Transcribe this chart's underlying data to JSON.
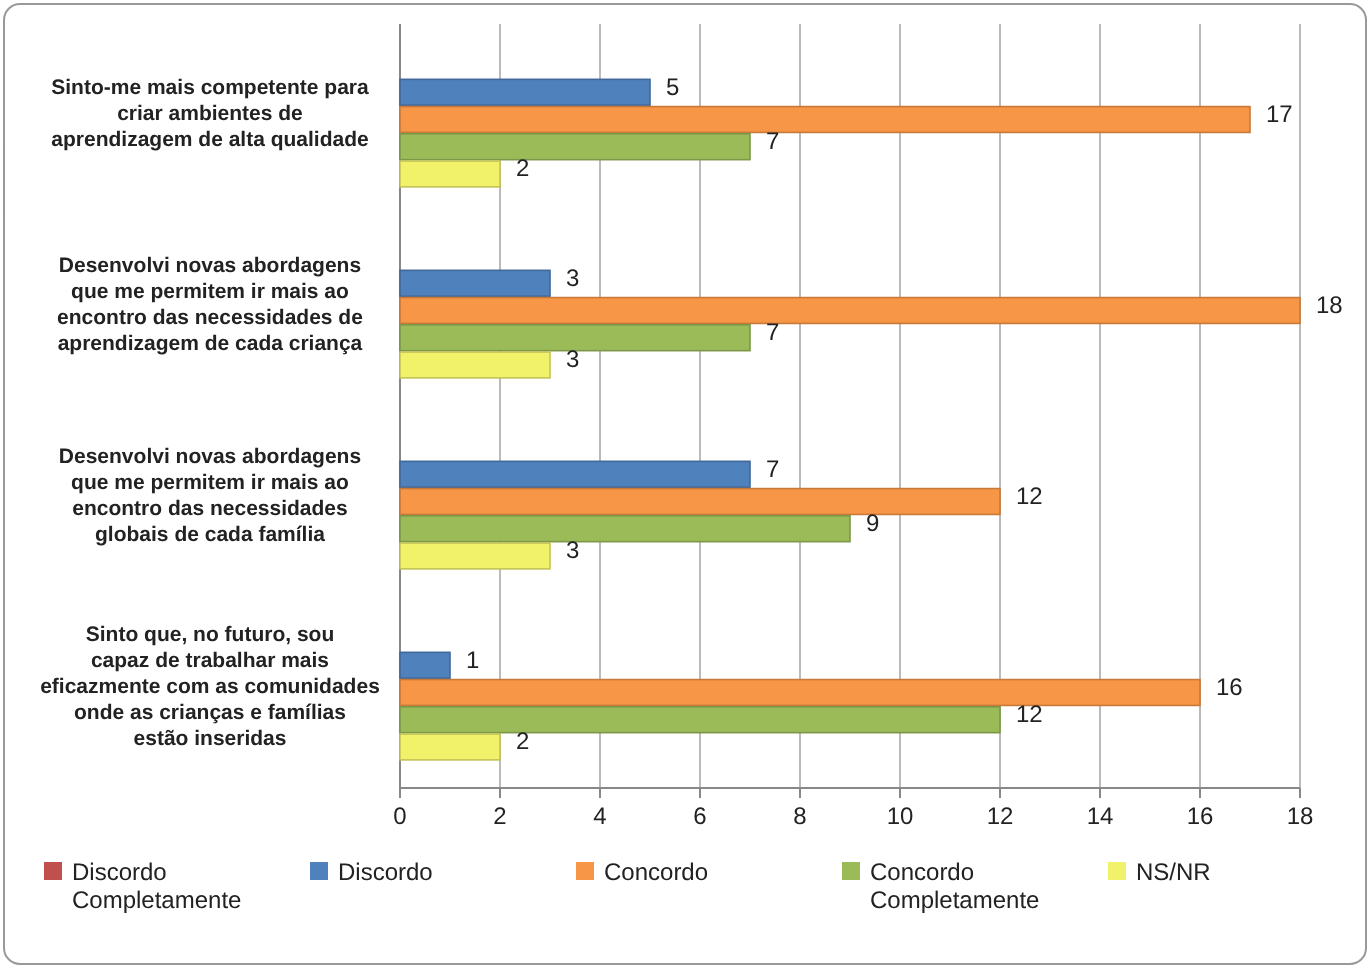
{
  "chart_data": {
    "type": "bar",
    "orientation": "horizontal",
    "categories": [
      "Sinto-me mais competente para criar ambientes de aprendizagem de alta qualidade",
      "Desenvolvi novas abordagens que me permitem ir mais ao encontro das necessidades de aprendizagem de cada criança",
      "Desenvolvi novas abordagens que me permitem ir mais ao encontro das necessidades globais de cada família",
      "Sinto que, no futuro, sou capaz de trabalhar mais eficazmente com as comunidades onde as crianças e famílias estão inseridas"
    ],
    "series": [
      {
        "name": "Discordo Completamente",
        "color": "#c0504d",
        "values": [
          null,
          null,
          null,
          null
        ]
      },
      {
        "name": "Discordo",
        "color": "#4f81bd",
        "values": [
          5,
          3,
          7,
          1
        ]
      },
      {
        "name": "Concordo",
        "color": "#f79646",
        "values": [
          17,
          18,
          12,
          16
        ]
      },
      {
        "name": "Concordo Completamente",
        "color": "#9bbb59",
        "values": [
          7,
          7,
          9,
          12
        ]
      },
      {
        "name": "NS/NR",
        "color": "#f2f26a",
        "values": [
          2,
          3,
          3,
          2
        ]
      }
    ],
    "xlim": [
      0,
      18
    ],
    "xticks": [
      0,
      2,
      4,
      6,
      8,
      10,
      12,
      14,
      16,
      18
    ],
    "grid": "x",
    "legend": "bottom",
    "data_labels": true
  }
}
